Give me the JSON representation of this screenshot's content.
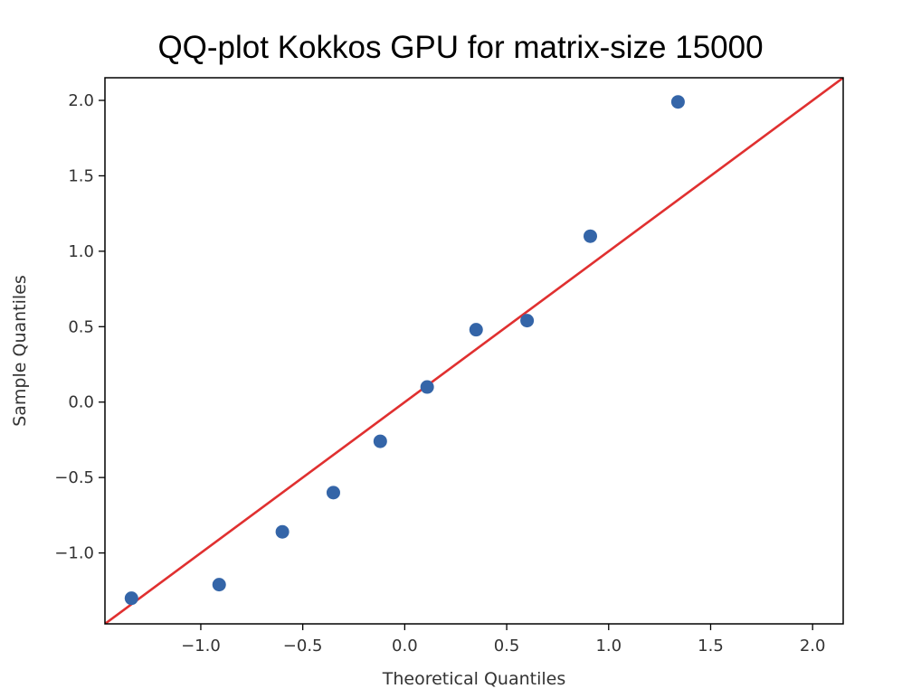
{
  "chart_data": {
    "type": "scatter",
    "title": "QQ-plot Kokkos GPU for matrix-size 15000",
    "xlabel": "Theoretical Quantiles",
    "ylabel": "Sample Quantiles",
    "xlim": [
      -1.47,
      2.15
    ],
    "ylim": [
      -1.47,
      2.15
    ],
    "x_ticks": [
      {
        "value": -1.0,
        "label": "−1.0"
      },
      {
        "value": -0.5,
        "label": "−0.5"
      },
      {
        "value": 0.0,
        "label": "0.0"
      },
      {
        "value": 0.5,
        "label": "0.5"
      },
      {
        "value": 1.0,
        "label": "1.0"
      },
      {
        "value": 1.5,
        "label": "1.5"
      },
      {
        "value": 2.0,
        "label": "2.0"
      }
    ],
    "y_ticks": [
      {
        "value": -1.0,
        "label": "−1.0"
      },
      {
        "value": -0.5,
        "label": "−0.5"
      },
      {
        "value": 0.0,
        "label": "0.0"
      },
      {
        "value": 0.5,
        "label": "0.5"
      },
      {
        "value": 1.0,
        "label": "1.0"
      },
      {
        "value": 1.5,
        "label": "1.5"
      },
      {
        "value": 2.0,
        "label": "2.0"
      }
    ],
    "points": [
      {
        "x": -1.34,
        "y": -1.3
      },
      {
        "x": -0.91,
        "y": -1.21
      },
      {
        "x": -0.6,
        "y": -0.86
      },
      {
        "x": -0.35,
        "y": -0.6
      },
      {
        "x": -0.12,
        "y": -0.26
      },
      {
        "x": 0.11,
        "y": 0.1
      },
      {
        "x": 0.35,
        "y": 0.48
      },
      {
        "x": 0.6,
        "y": 0.54
      },
      {
        "x": 0.91,
        "y": 1.1
      },
      {
        "x": 1.34,
        "y": 1.99
      }
    ],
    "reference_line": {
      "slope": 1.0,
      "intercept": 0.0
    },
    "colors": {
      "points": "#3465a8",
      "line": "#e03030"
    },
    "grid": false,
    "legend": "none"
  }
}
